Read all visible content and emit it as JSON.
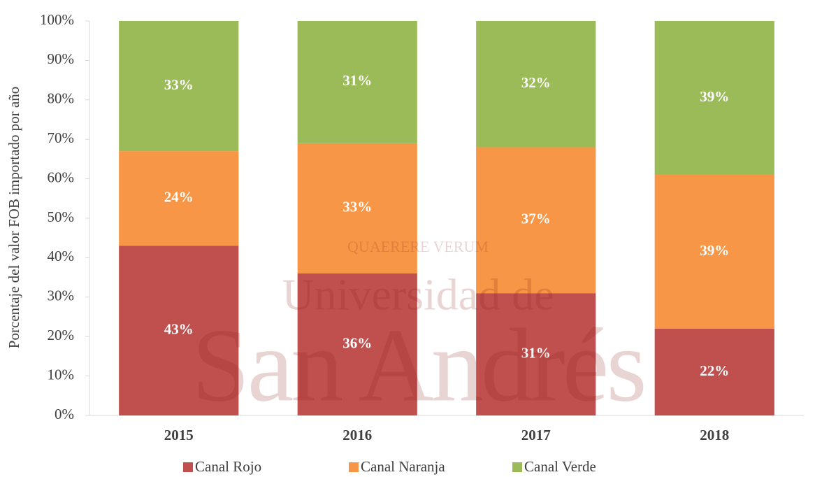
{
  "chart_data": {
    "type": "stacked_bar",
    "y_axis_label": "Porcentaje del valor FOB importado por año",
    "categories": [
      "2015",
      "2016",
      "2017",
      "2018"
    ],
    "series": [
      {
        "name": "Canal Rojo",
        "color": "#c0504d",
        "values": [
          43,
          36,
          31,
          22
        ],
        "value_labels": [
          "43%",
          "36%",
          "31%",
          "22%"
        ]
      },
      {
        "name": "Canal Naranja",
        "color": "#f79646",
        "values": [
          24,
          33,
          37,
          39
        ],
        "value_labels": [
          "24%",
          "33%",
          "37%",
          "39%"
        ]
      },
      {
        "name": "Canal Verde",
        "color": "#9bbb59",
        "values": [
          33,
          31,
          32,
          39
        ],
        "value_labels": [
          "33%",
          "31%",
          "32%",
          "39%"
        ]
      }
    ],
    "ylim": [
      0,
      100
    ],
    "yticks": [
      {
        "value": 0,
        "label": "0%"
      },
      {
        "value": 10,
        "label": "10%"
      },
      {
        "value": 20,
        "label": "20%"
      },
      {
        "value": 30,
        "label": "30%"
      },
      {
        "value": 40,
        "label": "40%"
      },
      {
        "value": 50,
        "label": "50%"
      },
      {
        "value": 60,
        "label": "60%"
      },
      {
        "value": 70,
        "label": "70%"
      },
      {
        "value": 80,
        "label": "80%"
      },
      {
        "value": 90,
        "label": "90%"
      },
      {
        "value": 100,
        "label": "100%"
      }
    ],
    "legend": "bottom",
    "watermark": {
      "motto": "QUAERERE VERUM",
      "line1": "Universidad de",
      "line2": "San Andrés"
    }
  }
}
